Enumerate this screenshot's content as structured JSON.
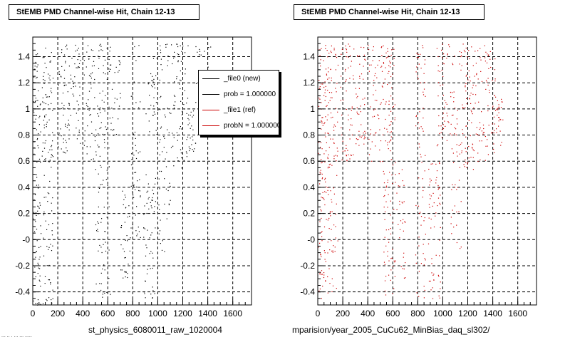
{
  "panels": [
    {
      "title": "StEMB PMD Channel-wise Hit, Chain 12-13",
      "subtitle": "st_physics_6080011_raw_1020004"
    },
    {
      "title": "StEMB PMD Channel-wise Hit, Chain 12-13",
      "subtitle": "mparision/year_2005_CuCu62_MinBias_daq_sl302/"
    }
  ],
  "legend": {
    "entries": [
      {
        "label": "_file0 (new)",
        "color": "#000000"
      },
      {
        "label": "prob = 1.000000",
        "color": "#000000"
      },
      {
        "label": "_file1 (ref)",
        "color": "#cc0000"
      },
      {
        "label": "probN = 1.000000",
        "color": "#cc0000"
      }
    ]
  },
  "footer": {
    "text": "... .. . ... ... ....."
  },
  "chart_data": [
    {
      "type": "scatter",
      "title": "StEMB PMD Channel-wise Hit, Chain 12-13",
      "xlabel": "",
      "ylabel": "",
      "xlim": [
        0,
        1750
      ],
      "ylim": [
        -0.5,
        1.55
      ],
      "xticks": [
        0,
        200,
        400,
        600,
        800,
        1000,
        1200,
        1400,
        1600
      ],
      "yticks": [
        1.4,
        1.2,
        1,
        0.8,
        0.6,
        0.4,
        0.2,
        0,
        -0.2,
        -0.4
      ],
      "ytick_labels": [
        "1.4",
        "1.2",
        "1",
        "0.8",
        "0.6",
        "0.4",
        "0.2",
        "-0",
        "-0.2",
        "-0.4"
      ],
      "grid": true,
      "color": "#000000",
      "point_bands": [
        {
          "x_range": [
            0,
            60
          ],
          "y_range": [
            -0.5,
            1.5
          ],
          "count": 90
        },
        {
          "x_range": [
            60,
            160
          ],
          "y_range": [
            0.55,
            1.5
          ],
          "count": 70
        },
        {
          "x_range": [
            60,
            160
          ],
          "y_range": [
            -0.5,
            0.5
          ],
          "count": 45
        },
        {
          "x_range": [
            200,
            290
          ],
          "y_range": [
            0.65,
            1.5
          ],
          "count": 55
        },
        {
          "x_range": [
            300,
            380
          ],
          "y_range": [
            0.7,
            1.5
          ],
          "count": 40
        },
        {
          "x_range": [
            400,
            500
          ],
          "y_range": [
            0.6,
            1.5
          ],
          "count": 45
        },
        {
          "x_range": [
            500,
            620
          ],
          "y_range": [
            -0.45,
            1.5
          ],
          "count": 110
        },
        {
          "x_range": [
            620,
            700
          ],
          "y_range": [
            0.8,
            1.5
          ],
          "count": 25
        },
        {
          "x_range": [
            700,
            780
          ],
          "y_range": [
            -0.3,
            0.4
          ],
          "count": 35
        },
        {
          "x_range": [
            780,
            860
          ],
          "y_range": [
            0.0,
            1.5
          ],
          "count": 50
        },
        {
          "x_range": [
            880,
            980
          ],
          "y_range": [
            -0.45,
            0.5
          ],
          "count": 55
        },
        {
          "x_range": [
            900,
            1000
          ],
          "y_range": [
            0.8,
            1.45
          ],
          "count": 30
        },
        {
          "x_range": [
            1000,
            1100
          ],
          "y_range": [
            -0.1,
            1.5
          ],
          "count": 60
        },
        {
          "x_range": [
            1100,
            1240
          ],
          "y_range": [
            0.55,
            1.5
          ],
          "count": 70
        },
        {
          "x_range": [
            1230,
            1300
          ],
          "y_range": [
            0.65,
            1.0
          ],
          "count": 25
        },
        {
          "x_range": [
            1300,
            1420
          ],
          "y_range": [
            0.8,
            1.5
          ],
          "count": 45
        }
      ]
    },
    {
      "type": "scatter",
      "title": "StEMB PMD Channel-wise Hit, Chain 12-13",
      "xlabel": "",
      "ylabel": "",
      "xlim": [
        0,
        1750
      ],
      "ylim": [
        -0.5,
        1.55
      ],
      "xticks": [
        0,
        200,
        400,
        600,
        800,
        1000,
        1200,
        1400,
        1600
      ],
      "yticks": [
        1.4,
        1.2,
        1,
        0.8,
        0.6,
        0.4,
        0.2,
        0,
        -0.2,
        -0.4
      ],
      "ytick_labels": [
        "1.4",
        "1.2",
        "1",
        "0.8",
        "0.6",
        "0.4",
        "0.2",
        "-0",
        "-0.2",
        "-0.4"
      ],
      "grid": true,
      "color": "#cc0000",
      "point_bands": [
        {
          "x_range": [
            0,
            60
          ],
          "y_range": [
            -0.45,
            1.5
          ],
          "count": 100
        },
        {
          "x_range": [
            60,
            160
          ],
          "y_range": [
            0.55,
            1.5
          ],
          "count": 75
        },
        {
          "x_range": [
            60,
            160
          ],
          "y_range": [
            -0.45,
            0.5
          ],
          "count": 45
        },
        {
          "x_range": [
            180,
            290
          ],
          "y_range": [
            0.6,
            1.5
          ],
          "count": 60
        },
        {
          "x_range": [
            300,
            380
          ],
          "y_range": [
            0.7,
            1.5
          ],
          "count": 45
        },
        {
          "x_range": [
            400,
            520
          ],
          "y_range": [
            0.6,
            1.5
          ],
          "count": 55
        },
        {
          "x_range": [
            520,
            620
          ],
          "y_range": [
            -0.45,
            1.5
          ],
          "count": 120
        },
        {
          "x_range": [
            620,
            700
          ],
          "y_range": [
            -0.3,
            0.6
          ],
          "count": 30
        },
        {
          "x_range": [
            780,
            860
          ],
          "y_range": [
            -0.45,
            1.5
          ],
          "count": 70
        },
        {
          "x_range": [
            880,
            980
          ],
          "y_range": [
            -0.45,
            0.6
          ],
          "count": 60
        },
        {
          "x_range": [
            950,
            1060
          ],
          "y_range": [
            0.7,
            1.5
          ],
          "count": 50
        },
        {
          "x_range": [
            1060,
            1150
          ],
          "y_range": [
            -0.1,
            1.45
          ],
          "count": 60
        },
        {
          "x_range": [
            1150,
            1300
          ],
          "y_range": [
            0.5,
            1.5
          ],
          "count": 90
        },
        {
          "x_range": [
            1300,
            1420
          ],
          "y_range": [
            0.6,
            1.5
          ],
          "count": 60
        },
        {
          "x_range": [
            1420,
            1480
          ],
          "y_range": [
            0.7,
            1.1
          ],
          "count": 25
        }
      ]
    }
  ]
}
